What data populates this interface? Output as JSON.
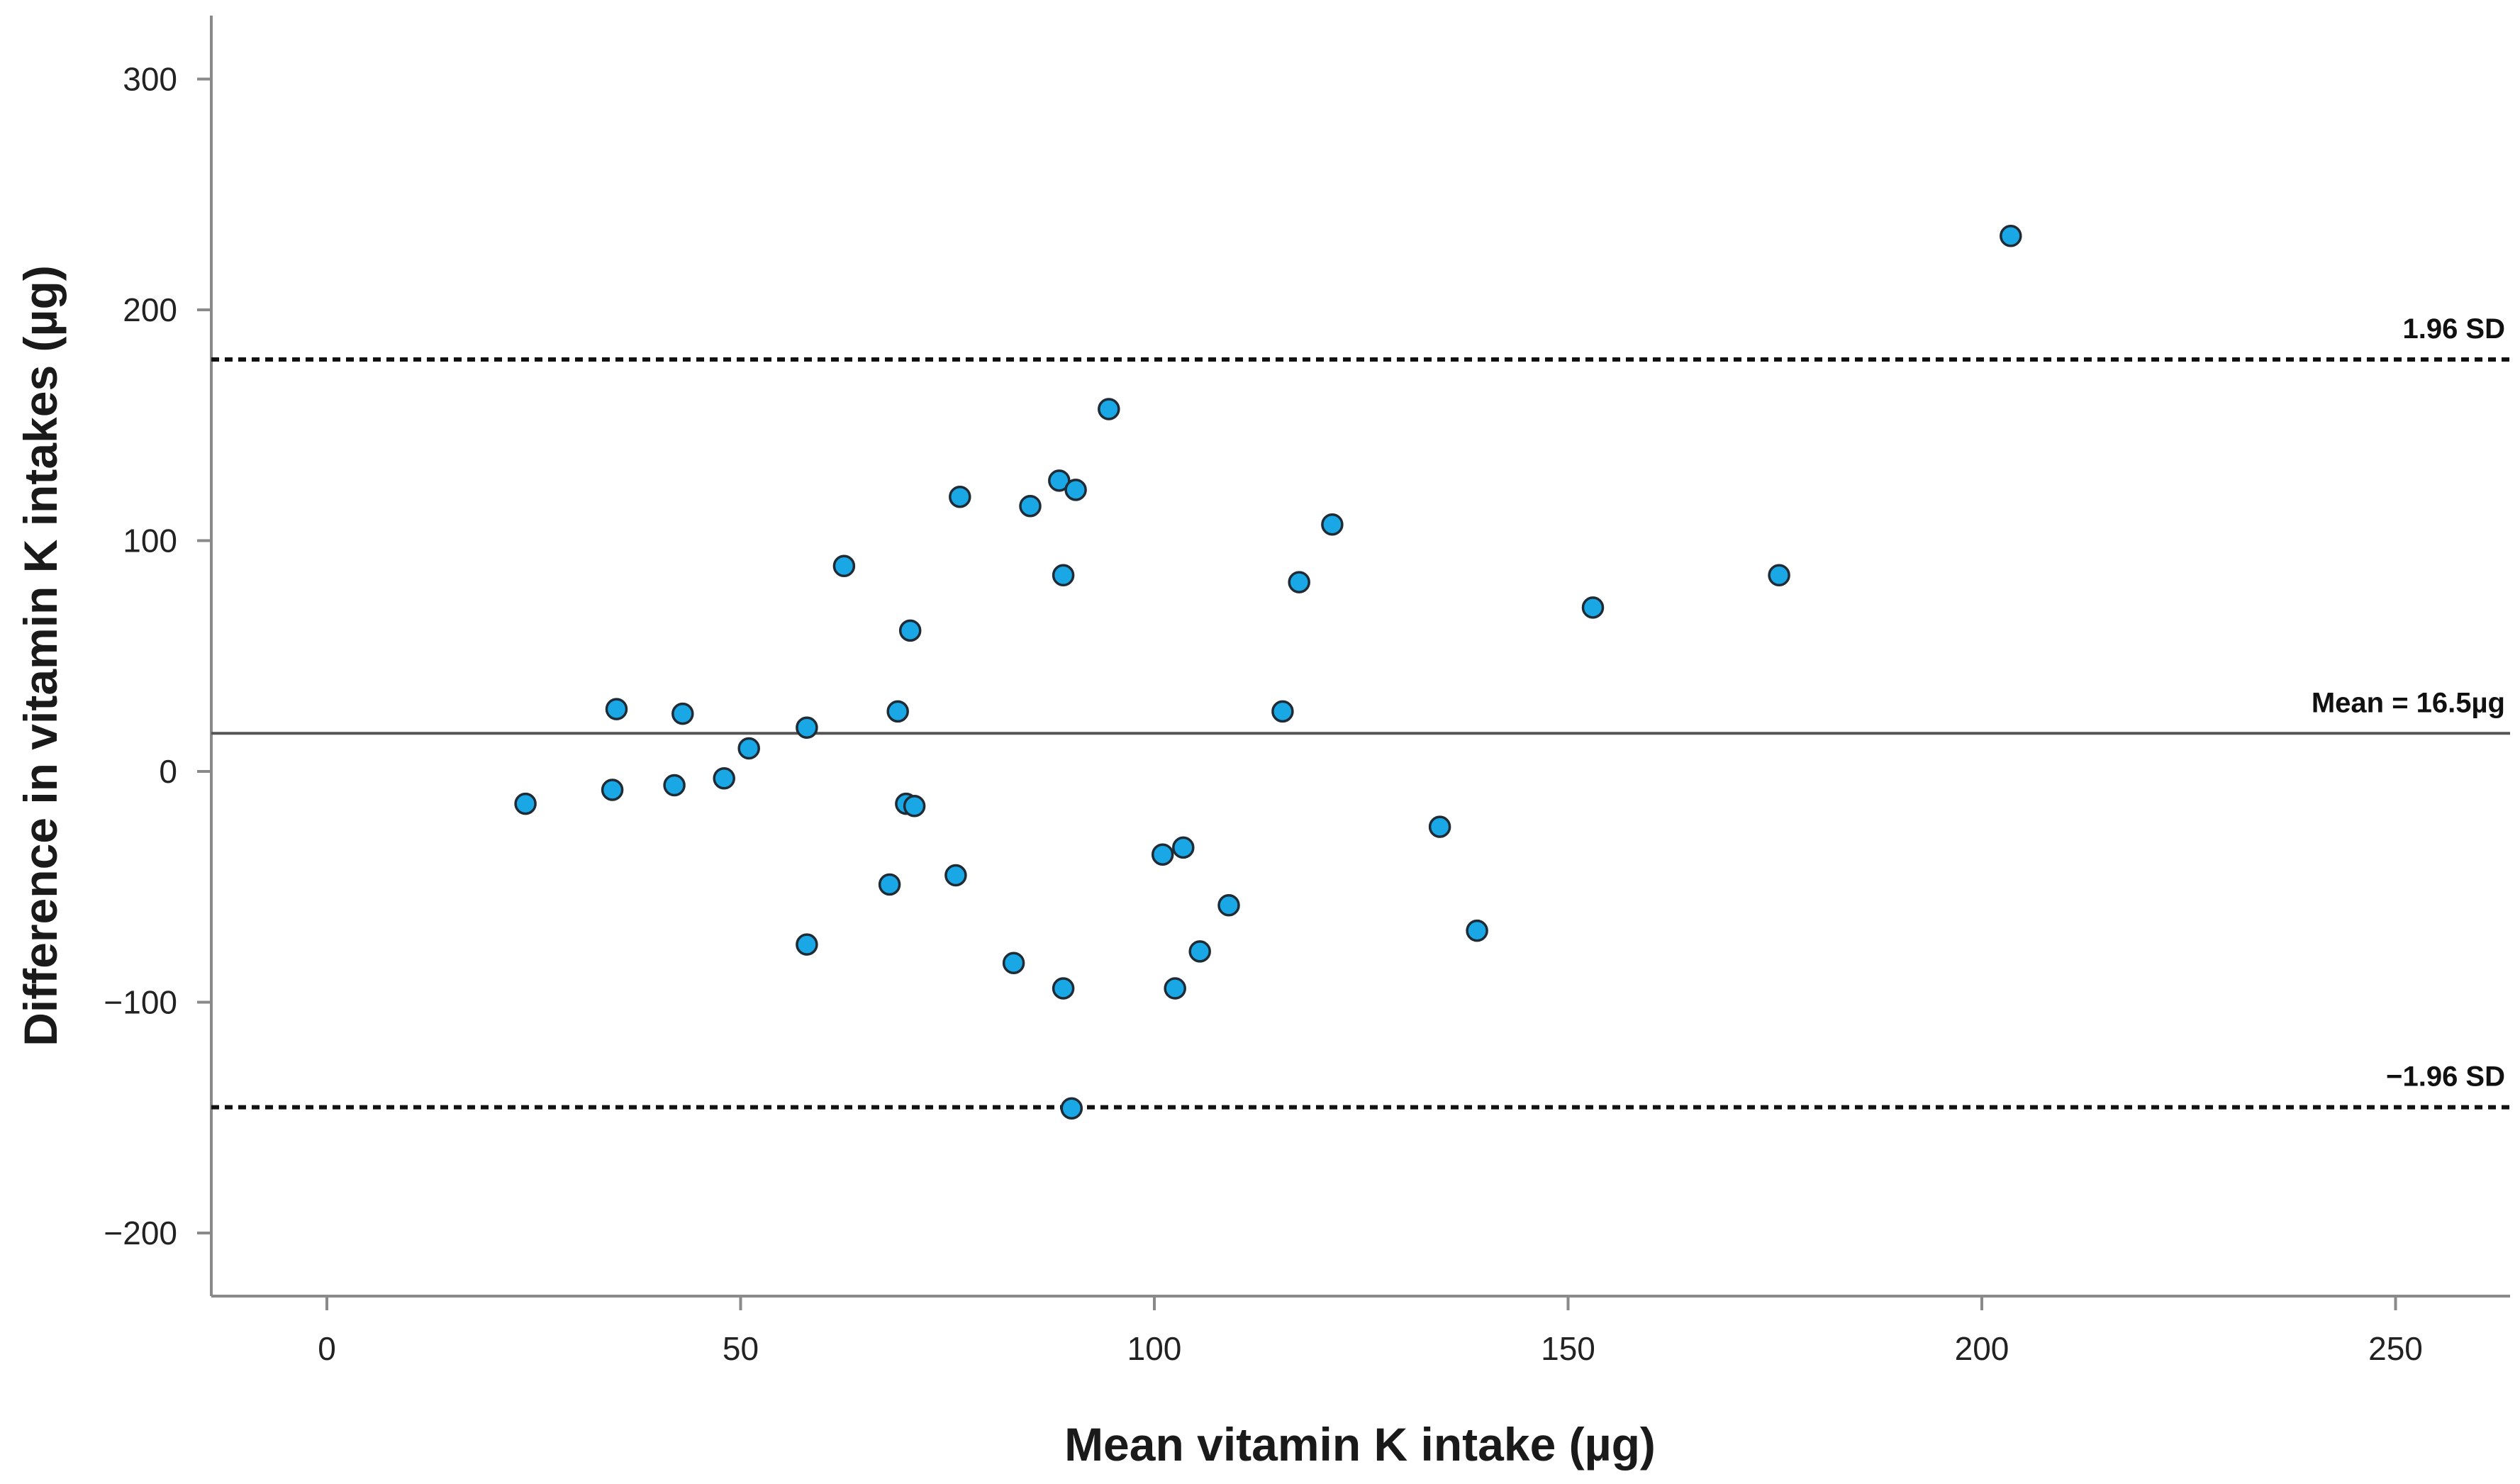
{
  "chart_data": {
    "type": "scatter",
    "title": "",
    "xlabel": "Mean vitamin K intake (µg)",
    "ylabel": "Difference in vitamin K intakes (µg)",
    "xlim": [
      -14,
      266
    ],
    "ylim": [
      -228,
      328
    ],
    "xticks": [
      0,
      50,
      100,
      150,
      200,
      250
    ],
    "yticks": [
      300,
      200,
      100,
      0,
      -100,
      -200
    ],
    "xtick_labels": [
      "0",
      "50",
      "100",
      "150",
      "200",
      "250"
    ],
    "ytick_labels": [
      "300",
      "200",
      "100",
      "0",
      "−100",
      "−200"
    ],
    "point_color": "#1aa7e6",
    "point_edge_color": "#1f2b35",
    "reference_lines": [
      {
        "name": "upper-limit",
        "y": 178.5,
        "style": "dotted",
        "label": "1.96 SD"
      },
      {
        "name": "mean",
        "y": 16.5,
        "style": "solid",
        "label": "Mean = 16.5µg"
      },
      {
        "name": "lower-limit",
        "y": -145.5,
        "style": "dotted",
        "label": "−1.96 SD"
      }
    ],
    "points": [
      {
        "x": 24,
        "y": -14
      },
      {
        "x": 34.5,
        "y": -8
      },
      {
        "x": 35,
        "y": 27
      },
      {
        "x": 42,
        "y": -6
      },
      {
        "x": 43,
        "y": 25
      },
      {
        "x": 48,
        "y": -3
      },
      {
        "x": 51,
        "y": 10
      },
      {
        "x": 58,
        "y": 19
      },
      {
        "x": 58,
        "y": -75
      },
      {
        "x": 62.5,
        "y": 89
      },
      {
        "x": 68,
        "y": -49
      },
      {
        "x": 69,
        "y": 26
      },
      {
        "x": 70,
        "y": -14
      },
      {
        "x": 70.5,
        "y": 61
      },
      {
        "x": 71,
        "y": -15
      },
      {
        "x": 76,
        "y": -45
      },
      {
        "x": 76.5,
        "y": 119
      },
      {
        "x": 83,
        "y": -83
      },
      {
        "x": 85,
        "y": 115
      },
      {
        "x": 88.5,
        "y": 126
      },
      {
        "x": 89,
        "y": 85
      },
      {
        "x": 89,
        "y": -94
      },
      {
        "x": 90,
        "y": -146
      },
      {
        "x": 90.5,
        "y": 122
      },
      {
        "x": 94.5,
        "y": 157
      },
      {
        "x": 101,
        "y": -36
      },
      {
        "x": 102.5,
        "y": -94
      },
      {
        "x": 103.5,
        "y": -33
      },
      {
        "x": 105.5,
        "y": -78
      },
      {
        "x": 109,
        "y": -58
      },
      {
        "x": 115.5,
        "y": 26
      },
      {
        "x": 117.5,
        "y": 82
      },
      {
        "x": 121.5,
        "y": 107
      },
      {
        "x": 134.5,
        "y": -24
      },
      {
        "x": 139,
        "y": -69
      },
      {
        "x": 153,
        "y": 71
      },
      {
        "x": 175.5,
        "y": 85
      },
      {
        "x": 203.5,
        "y": 232
      }
    ]
  }
}
